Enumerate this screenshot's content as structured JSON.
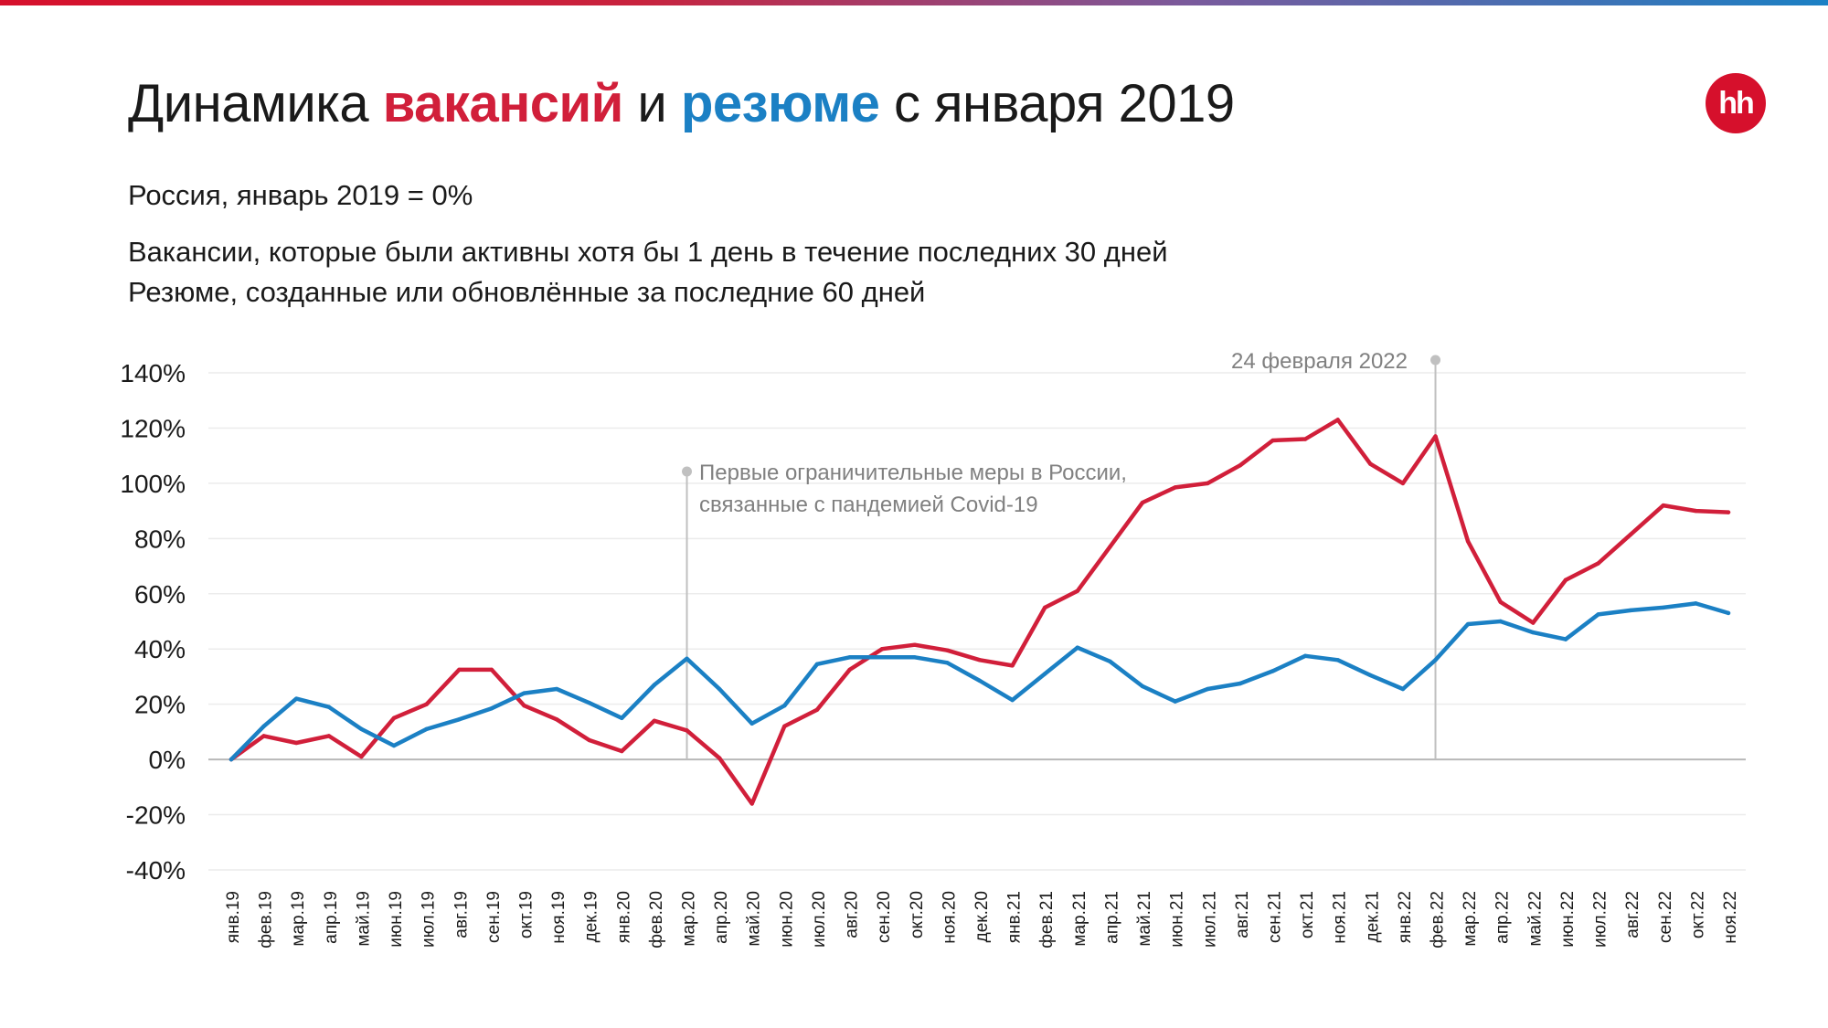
{
  "header": {
    "title_part1": "Динамика ",
    "title_part2": "вакансий",
    "title_part3": " и ",
    "title_part4": "резюме",
    "title_part5": " с января 2019",
    "logo_text": "hh",
    "subtitle": "Россия, январь 2019 = 0%",
    "note_vacancies": "Вакансии, которые были активны хотя бы 1 день в течение последних 30 дней",
    "note_resumes": "Резюме, созданные или обновлённые за последние 60 дней"
  },
  "colors": {
    "vacancies": "#d11f3a",
    "resumes": "#1b80c4",
    "brand": "#d6102c",
    "annotation": "#c0c0c0",
    "gridline": "#ececec"
  },
  "chart_data": {
    "type": "line",
    "ylim": [
      -40,
      140
    ],
    "yticks": [
      -40,
      -20,
      0,
      20,
      40,
      60,
      80,
      100,
      120,
      140
    ],
    "ytick_labels": [
      "-40%",
      "-20%",
      "0%",
      "20%",
      "40%",
      "60%",
      "80%",
      "100%",
      "120%",
      "140%"
    ],
    "grid": true,
    "categories": [
      "янв.19",
      "фев.19",
      "мар.19",
      "апр.19",
      "май.19",
      "июн.19",
      "июл.19",
      "авг.19",
      "сен.19",
      "окт.19",
      "ноя.19",
      "дек.19",
      "янв.20",
      "фев.20",
      "мар.20",
      "апр.20",
      "май.20",
      "июн.20",
      "июл.20",
      "авг.20",
      "сен.20",
      "окт.20",
      "ноя.20",
      "дек.20",
      "янв.21",
      "фев.21",
      "мар.21",
      "апр.21",
      "май.21",
      "июн.21",
      "июл.21",
      "авг.21",
      "сен.21",
      "окт.21",
      "ноя.21",
      "дек.21",
      "янв.22",
      "фев.22",
      "мар.22",
      "апр.22",
      "май.22",
      "июн.22",
      "июл.22",
      "авг.22",
      "сен.22",
      "окт.22",
      "ноя.22"
    ],
    "series": [
      {
        "key": "vacancies",
        "color": "#d11f3a",
        "values": [
          0,
          8.5,
          6,
          8.5,
          1,
          15,
          20,
          32.5,
          32.5,
          19.5,
          14.5,
          7,
          3,
          14,
          10.5,
          0.5,
          -16,
          12,
          18,
          32.5,
          40,
          41.5,
          39.5,
          36,
          34,
          55,
          61,
          77,
          93,
          98.5,
          100,
          106.5,
          115.5,
          116,
          123,
          107,
          100,
          117,
          79,
          57,
          49.5,
          65,
          71,
          81.5,
          92,
          90,
          89.5
        ]
      },
      {
        "key": "resumes",
        "color": "#1b80c4",
        "values": [
          0,
          12,
          22,
          19,
          11,
          5,
          11,
          14.5,
          18.5,
          24,
          25.5,
          20.5,
          15,
          27,
          36.5,
          25.5,
          13,
          19.5,
          34.5,
          37,
          37,
          37,
          35,
          28.5,
          21.5,
          31,
          40.5,
          35.5,
          26.5,
          21,
          25.5,
          27.5,
          32,
          37.5,
          36,
          30.5,
          25.5,
          36,
          49,
          50,
          46,
          43.5,
          52.5,
          54,
          55,
          56.5,
          53
        ]
      }
    ],
    "annotations": [
      {
        "index": 14,
        "text_lines": [
          "Первые ограничительные меры в России,",
          "связанные с пандемией Covid-19"
        ]
      },
      {
        "index": 37,
        "text_lines": [
          "24 февраля 2022"
        ]
      }
    ]
  }
}
